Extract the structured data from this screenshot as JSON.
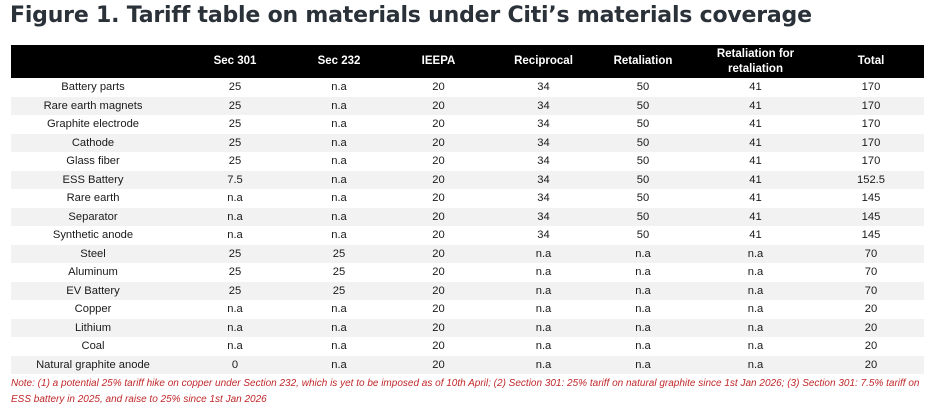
{
  "title": "Figure 1. Tariff table on materials under Citi’s materials coverage",
  "table": {
    "headers": [
      "",
      "Sec 301",
      "Sec 232",
      "IEEPA",
      "Reciprocal",
      "Retaliation",
      "Retaliation for retaliation",
      "Total"
    ],
    "rows": [
      [
        "Battery parts",
        "25",
        "n.a",
        "20",
        "34",
        "50",
        "41",
        "170"
      ],
      [
        "Rare earth magnets",
        "25",
        "n.a",
        "20",
        "34",
        "50",
        "41",
        "170"
      ],
      [
        "Graphite electrode",
        "25",
        "n.a",
        "20",
        "34",
        "50",
        "41",
        "170"
      ],
      [
        "Cathode",
        "25",
        "n.a",
        "20",
        "34",
        "50",
        "41",
        "170"
      ],
      [
        "Glass fiber",
        "25",
        "n.a",
        "20",
        "34",
        "50",
        "41",
        "170"
      ],
      [
        "ESS Battery",
        "7.5",
        "n.a",
        "20",
        "34",
        "50",
        "41",
        "152.5"
      ],
      [
        "Rare earth",
        "n.a",
        "n.a",
        "20",
        "34",
        "50",
        "41",
        "145"
      ],
      [
        "Separator",
        "n.a",
        "n.a",
        "20",
        "34",
        "50",
        "41",
        "145"
      ],
      [
        "Synthetic anode",
        "n.a",
        "n.a",
        "20",
        "34",
        "50",
        "41",
        "145"
      ],
      [
        "Steel",
        "25",
        "25",
        "20",
        "n.a",
        "n.a",
        "n.a",
        "70"
      ],
      [
        "Aluminum",
        "25",
        "25",
        "20",
        "n.a",
        "n.a",
        "n.a",
        "70"
      ],
      [
        "EV Battery",
        "25",
        "25",
        "20",
        "n.a",
        "n.a",
        "n.a",
        "70"
      ],
      [
        "Copper",
        "n.a",
        "n.a",
        "20",
        "n.a",
        "n.a",
        "n.a",
        "20"
      ],
      [
        "Lithium",
        "n.a",
        "n.a",
        "20",
        "n.a",
        "n.a",
        "n.a",
        "20"
      ],
      [
        "Coal",
        "n.a",
        "n.a",
        "20",
        "n.a",
        "n.a",
        "n.a",
        "20"
      ],
      [
        "Natural graphite anode",
        "0",
        "n.a",
        "20",
        "n.a",
        "n.a",
        "n.a",
        "20"
      ]
    ]
  },
  "note": "Note: (1) a potential 25% tariff hike on copper under Section 232, which is yet to be imposed as of 10th April; (2) Section 301: 25% tariff on natural graphite since 1st Jan 2026; (3) Section 301: 7.5% tariff on ESS battery in 2025, and raise to 25% since 1st Jan 2026",
  "colors": {
    "header_bg": "#000000",
    "header_text": "#ffffff",
    "note_text": "#c0282b",
    "title_text": "#2a3138"
  }
}
